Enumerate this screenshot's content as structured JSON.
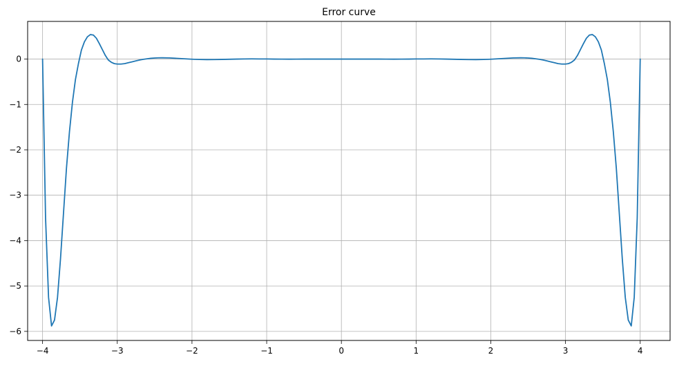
{
  "chart_data": {
    "type": "line",
    "title": "Error curve",
    "xlabel": "",
    "ylabel": "",
    "xlim": [
      -4.2,
      4.4
    ],
    "ylim": [
      -6.2,
      0.83
    ],
    "xticks": [
      -4,
      -3,
      -2,
      -1,
      0,
      1,
      2,
      3,
      4
    ],
    "yticks": [
      0,
      -1,
      -2,
      -3,
      -4,
      -5,
      -6
    ],
    "xtick_labels": [
      "−4",
      "−3",
      "−2",
      "−1",
      "0",
      "1",
      "2",
      "3",
      "4"
    ],
    "ytick_labels": [
      "0",
      "−1",
      "−2",
      "−3",
      "−4",
      "−5",
      "−6"
    ],
    "grid": true,
    "legend": "none",
    "series": [
      {
        "color": "#1f77b4",
        "x": [
          -4.0,
          -3.96,
          -3.92,
          -3.88,
          -3.84,
          -3.8,
          -3.76,
          -3.72,
          -3.68,
          -3.64,
          -3.6,
          -3.56,
          -3.52,
          -3.48,
          -3.44,
          -3.4,
          -3.36,
          -3.32,
          -3.28,
          -3.24,
          -3.2,
          -3.16,
          -3.12,
          -3.08,
          -3.04,
          -3.0,
          -2.95,
          -2.9,
          -2.85,
          -2.8,
          -2.75,
          -2.7,
          -2.65,
          -2.6,
          -2.55,
          -2.5,
          -2.45,
          -2.4,
          -2.3,
          -2.2,
          -2.1,
          -2.0,
          -1.9,
          -1.8,
          -1.7,
          -1.6,
          -1.5,
          -1.4,
          -1.3,
          -1.2,
          -1.1,
          -1.0,
          -0.9,
          -0.8,
          -0.7,
          -0.6,
          -0.5,
          -0.4,
          -0.3,
          -0.2,
          -0.1,
          0.0,
          0.1,
          0.2,
          0.3,
          0.4,
          0.5,
          0.6,
          0.7,
          0.8,
          0.9,
          1.0,
          1.1,
          1.2,
          1.3,
          1.4,
          1.5,
          1.6,
          1.7,
          1.8,
          1.9,
          2.0,
          2.1,
          2.2,
          2.3,
          2.4,
          2.45,
          2.5,
          2.55,
          2.6,
          2.65,
          2.7,
          2.75,
          2.8,
          2.85,
          2.9,
          2.95,
          3.0,
          3.04,
          3.08,
          3.12,
          3.16,
          3.2,
          3.24,
          3.28,
          3.32,
          3.36,
          3.4,
          3.44,
          3.48,
          3.52,
          3.56,
          3.6,
          3.64,
          3.68,
          3.72,
          3.76,
          3.8,
          3.84,
          3.88,
          3.92,
          3.96,
          4.0
        ],
        "y": [
          0.0,
          -3.5,
          -5.25,
          -5.88,
          -5.75,
          -5.25,
          -4.4,
          -3.4,
          -2.4,
          -1.6,
          -0.95,
          -0.45,
          -0.1,
          0.2,
          0.38,
          0.49,
          0.54,
          0.53,
          0.46,
          0.34,
          0.21,
          0.08,
          -0.02,
          -0.07,
          -0.1,
          -0.11,
          -0.11,
          -0.1,
          -0.08,
          -0.06,
          -0.04,
          -0.02,
          -0.005,
          0.007,
          0.017,
          0.024,
          0.027,
          0.028,
          0.025,
          0.016,
          0.006,
          -0.003,
          -0.009,
          -0.012,
          -0.011,
          -0.008,
          -0.004,
          0.0,
          0.003,
          0.004,
          0.003,
          0.002,
          0.0,
          -0.001,
          -0.002,
          -0.001,
          0.0,
          0.0,
          0.0,
          0.0,
          0.0,
          0.0,
          0.0,
          0.0,
          0.0,
          0.0,
          0.0,
          -0.001,
          -0.002,
          -0.001,
          0.0,
          0.002,
          0.003,
          0.004,
          0.003,
          0.0,
          -0.004,
          -0.008,
          -0.011,
          -0.012,
          -0.009,
          -0.003,
          0.006,
          0.016,
          0.025,
          0.028,
          0.027,
          0.024,
          0.017,
          0.007,
          -0.005,
          -0.02,
          -0.04,
          -0.06,
          -0.08,
          -0.1,
          -0.11,
          -0.11,
          -0.1,
          -0.07,
          -0.02,
          0.08,
          0.21,
          0.34,
          0.46,
          0.53,
          0.54,
          0.49,
          0.38,
          0.2,
          -0.1,
          -0.45,
          -0.95,
          -1.6,
          -2.4,
          -3.4,
          -4.4,
          -5.25,
          -5.75,
          -5.88,
          -5.25,
          -3.5,
          0.0
        ]
      }
    ]
  }
}
